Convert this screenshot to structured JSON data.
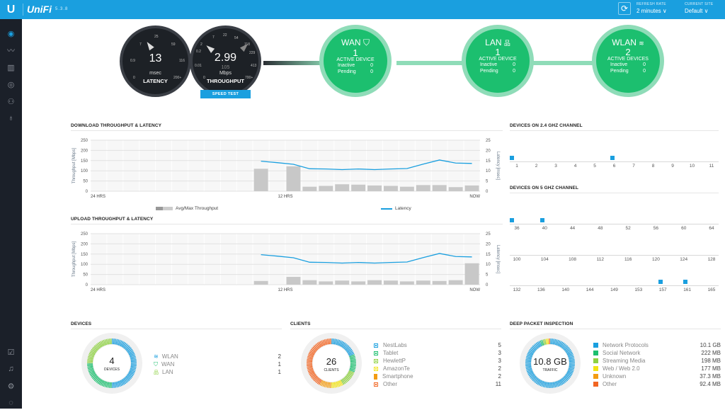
{
  "app": {
    "logo": "U",
    "brand": "UniFi",
    "version": "5.3.8"
  },
  "header": {
    "refresh_label": "REFRESH RATE",
    "refresh_value": "2 minutes ∨",
    "site_label": "CURRENT SITE",
    "site_value": "Default ∨"
  },
  "sidebar": {
    "top": [
      "dashboard-icon",
      "statistics-icon",
      "map-icon",
      "devices-icon",
      "clients-icon",
      "insights-icon"
    ],
    "bottom": [
      "alerts-check-icon",
      "events-bell-icon",
      "settings-icon",
      "chat-icon"
    ]
  },
  "latency_gauge": {
    "value": "13",
    "unit": "msec",
    "label": "LATENCY",
    "ticks": [
      "0",
      "0.9",
      "7",
      "25",
      "59",
      "116",
      "200+"
    ]
  },
  "throughput_gauge": {
    "value": "2.99",
    "secondary": "105",
    "unit": "Mbps",
    "label": "THROUGHPUT",
    "ticks": [
      "0",
      "0.01",
      "0.2",
      "2",
      "7",
      "22",
      "54",
      "118",
      "229",
      "413",
      "700+"
    ],
    "speed_test_label": "SPEED TEST"
  },
  "network": [
    {
      "title": "WAN",
      "icon": "shield-icon",
      "count": "1",
      "active_label": "ACTIVE DEVICE",
      "inactive_label": "Inactive",
      "inactive": "0",
      "pending_label": "Pending",
      "pending": "0"
    },
    {
      "title": "LAN",
      "icon": "network-tree-icon",
      "count": "1",
      "active_label": "ACTIVE DEVICE",
      "inactive_label": "Inactive",
      "inactive": "0",
      "pending_label": "Pending",
      "pending": "0"
    },
    {
      "title": "WLAN",
      "icon": "wifi-icon",
      "count": "2",
      "active_label": "ACTIVE DEVICES",
      "inactive_label": "Inactive",
      "inactive": "0",
      "pending_label": "Pending",
      "pending": "0"
    }
  ],
  "chart_data": [
    {
      "type": "bar",
      "title": "DOWNLOAD THROUGHPUT & LATENCY",
      "ylabel": "Throughput [Mbps]",
      "y2label": "Latency [msec]",
      "ylim": [
        0,
        250
      ],
      "y2lim": [
        0,
        25
      ],
      "yticks": [
        "0",
        "50",
        "100",
        "150",
        "200",
        "250"
      ],
      "y2ticks": [
        "0",
        "5",
        "10",
        "15",
        "20",
        "25"
      ],
      "xlabels": [
        "24 HRS",
        "12 HRS",
        "NOW"
      ],
      "slots": 24,
      "legend": [
        "Avg/Max Throughput",
        "Latency"
      ],
      "series": [
        {
          "name": "Max Throughput",
          "slot_start": 10,
          "values": [
            110,
            null,
            122,
            22,
            26,
            34,
            32,
            28,
            26,
            22,
            30,
            30,
            20,
            28
          ]
        },
        {
          "name": "Latency",
          "slot_start": 10,
          "values": [
            14.7,
            14,
            13.2,
            11,
            10.9,
            10.6,
            10.9,
            10.6,
            10.9,
            11.1,
            13.3,
            15.3,
            13.8,
            13.6
          ]
        }
      ]
    },
    {
      "type": "bar",
      "title": "UPLOAD THROUGHPUT & LATENCY",
      "ylabel": "Throughput [Mbps]",
      "y2label": "Latency [msec]",
      "ylim": [
        0,
        250
      ],
      "y2lim": [
        0,
        25
      ],
      "yticks": [
        "0",
        "50",
        "100",
        "150",
        "200",
        "250"
      ],
      "y2ticks": [
        "0",
        "5",
        "10",
        "15",
        "20",
        "25"
      ],
      "xlabels": [
        "24 HRS",
        "12 HRS",
        "NOW"
      ],
      "slots": 24,
      "series": [
        {
          "name": "Max Throughput",
          "slot_start": 10,
          "values": [
            18,
            null,
            38,
            22,
            16,
            20,
            16,
            22,
            20,
            16,
            20,
            18,
            22,
            105
          ]
        },
        {
          "name": "Latency",
          "slot_start": 10,
          "values": [
            14.7,
            14,
            13.2,
            11,
            10.9,
            10.6,
            10.9,
            10.6,
            10.9,
            11.1,
            13.3,
            15.3,
            13.8,
            13.6
          ]
        }
      ]
    }
  ],
  "channels_24": {
    "title": "DEVICES ON 2.4 GHZ CHANNEL",
    "labels": [
      "1",
      "2",
      "3",
      "4",
      "5",
      "6",
      "7",
      "8",
      "9",
      "10",
      "11"
    ],
    "devices_at": [
      "1",
      "6"
    ]
  },
  "channels_5": {
    "title": "DEVICES ON 5 GHZ CHANNEL",
    "rows": [
      {
        "labels": [
          "36",
          "40",
          "44",
          "48",
          "52",
          "56",
          "60",
          "64"
        ],
        "devices_at": [
          "36",
          "40"
        ]
      },
      {
        "labels": [
          "100",
          "104",
          "108",
          "112",
          "116",
          "120",
          "124",
          "128"
        ],
        "devices_at": []
      },
      {
        "labels": [
          "132",
          "136",
          "140",
          "144",
          "149",
          "153",
          "157",
          "161",
          "165"
        ],
        "devices_at": [
          "157",
          "161"
        ]
      }
    ]
  },
  "devices": {
    "title": "DEVICES",
    "total": "4",
    "total_label": "DEVICES",
    "items": [
      {
        "label": "WLAN",
        "value": "2",
        "color": "#1a9fdf"
      },
      {
        "label": "WAN",
        "value": "1",
        "color": "#1cbf6f"
      },
      {
        "label": "LAN",
        "value": "1",
        "color": "#8ed142"
      }
    ]
  },
  "clients": {
    "title": "CLIENTS",
    "total": "26",
    "total_label": "CLIENTS",
    "items": [
      {
        "label": "NestLabs",
        "value": "5",
        "color": "#1a9fdf"
      },
      {
        "label": "Tablet",
        "value": "3",
        "color": "#1cbf6f"
      },
      {
        "label": "HewlettP",
        "value": "3",
        "color": "#8ed142"
      },
      {
        "label": "AmazonTe",
        "value": "2",
        "color": "#f2e313"
      },
      {
        "label": "Smartphone",
        "value": "2",
        "color": "#f39c12"
      },
      {
        "label": "Other",
        "value": "11",
        "color": "#f26522"
      }
    ]
  },
  "dpi": {
    "title": "DEEP PACKET INSPECTION",
    "total": "10.8 GB",
    "total_label": "TRAFFIC",
    "items": [
      {
        "label": "Network Protocols",
        "value": "10.1 GB",
        "color": "#1a9fdf"
      },
      {
        "label": "Social Network",
        "value": "222 MB",
        "color": "#1cbf6f"
      },
      {
        "label": "Streaming Media",
        "value": "198 MB",
        "color": "#8ed142"
      },
      {
        "label": "Web / Web 2.0",
        "value": "177 MB",
        "color": "#f2e313"
      },
      {
        "label": "Unknown",
        "value": "37.3 MB",
        "color": "#f39c12"
      },
      {
        "label": "Other",
        "value": "92.4 MB",
        "color": "#f26522"
      }
    ],
    "shares": [
      10342,
      222,
      198,
      177,
      37.3,
      92.4
    ]
  }
}
